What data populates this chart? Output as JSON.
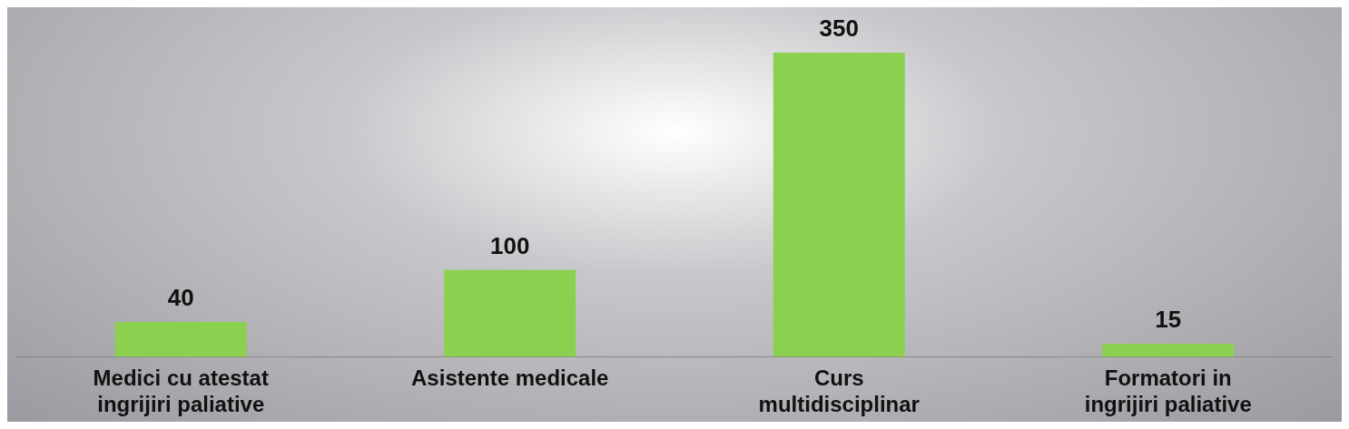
{
  "chart_data": {
    "type": "bar",
    "categories": [
      "Medici cu atestat ingrijiri paliative",
      "Asistente medicale",
      "Curs multidisciplinar",
      "Formatori in ingrijiri paliative"
    ],
    "values": [
      40,
      100,
      350,
      15
    ],
    "color": "#8bd14f",
    "data_labels": true,
    "grid": false,
    "legend": false
  }
}
